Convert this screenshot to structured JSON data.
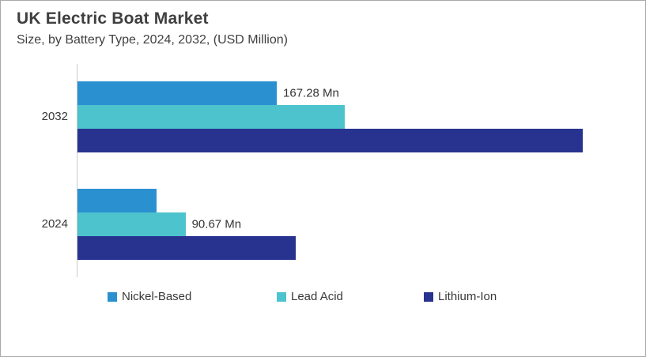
{
  "header": {
    "title": "UK Electric Boat Market",
    "subtitle": "Size, by Battery Type, 2024, 2032, (USD Million)"
  },
  "chart_data": {
    "type": "bar",
    "orientation": "horizontal",
    "title": "UK Electric Boat Market",
    "subtitle": "Size, by Battery Type, 2024, 2032, (USD Million)",
    "unit": "USD Million",
    "categories": [
      "2032",
      "2024"
    ],
    "series": [
      {
        "name": "Nickel-Based",
        "color": "#2b90d0",
        "values": [
          167.28,
          66.4
        ],
        "labels": [
          "167.28 Mn",
          ""
        ]
      },
      {
        "name": "Lead Acid",
        "color": "#4dc3cd",
        "values": [
          224.4,
          90.67
        ],
        "labels": [
          "",
          "90.67 Mn"
        ]
      },
      {
        "name": "Lithium-Ion",
        "color": "#283390",
        "values": [
          424.1,
          183.2
        ],
        "labels": [
          "",
          ""
        ]
      }
    ],
    "xlim": [
      0,
      454
    ],
    "grid": false,
    "legend_position": "bottom",
    "axis_line_color": "#c9c9c9"
  }
}
